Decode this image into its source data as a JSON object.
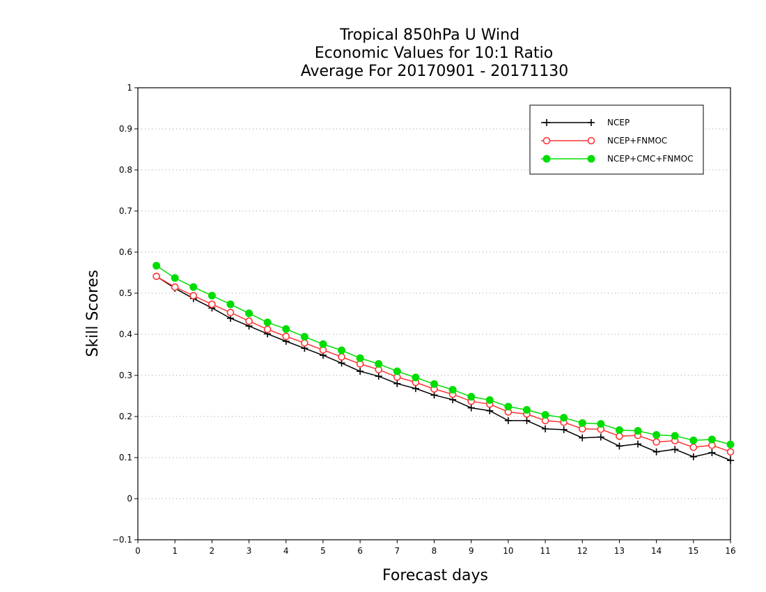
{
  "chart_data": {
    "type": "line",
    "title_lines": [
      "Tropical 850hPa U Wind",
      "Economic Values for 10:1 Ratio",
      "Average For 20170901 - 20171130"
    ],
    "xlabel": "Forecast days",
    "ylabel": "Skill Scores",
    "xlim": [
      0,
      16
    ],
    "ylim": [
      -0.1,
      1
    ],
    "xticks": [
      0,
      1,
      2,
      3,
      4,
      5,
      6,
      7,
      8,
      9,
      10,
      11,
      12,
      13,
      14,
      15,
      16
    ],
    "xtick_labels": [
      "0",
      "1",
      "2",
      "3",
      "4",
      "5",
      "6",
      "7",
      "8",
      "9",
      "10",
      "11",
      "12",
      "13",
      "14",
      "15",
      "16"
    ],
    "yticks": [
      -0.1,
      0,
      0.1,
      0.2,
      0.3,
      0.4,
      0.5,
      0.6,
      0.7,
      0.8,
      0.9,
      1
    ],
    "ytick_labels": [
      "−0.1",
      "0",
      "0.1",
      "0.2",
      "0.3",
      "0.4",
      "0.5",
      "0.6",
      "0.7",
      "0.8",
      "0.9",
      "1"
    ],
    "grid": "horizontal dotted",
    "legend_position": "top-right",
    "x": [
      0.5,
      1,
      1.5,
      2,
      2.5,
      3,
      3.5,
      4,
      4.5,
      5,
      5.5,
      6,
      6.5,
      7,
      7.5,
      8,
      8.5,
      9,
      9.5,
      10,
      10.5,
      11,
      11.5,
      12,
      12.5,
      13,
      13.5,
      14,
      14.5,
      15,
      15.5,
      16
    ],
    "series": [
      {
        "name": "NCEP",
        "color": "#000000",
        "marker": "plus",
        "values": [
          0.541,
          0.512,
          0.487,
          0.464,
          0.439,
          0.42,
          0.401,
          0.383,
          0.366,
          0.349,
          0.33,
          0.31,
          0.298,
          0.28,
          0.268,
          0.252,
          0.241,
          0.221,
          0.214,
          0.19,
          0.19,
          0.17,
          0.168,
          0.148,
          0.15,
          0.128,
          0.133,
          0.114,
          0.12,
          0.102,
          0.112,
          0.093
        ]
      },
      {
        "name": "NCEP+FNMOC",
        "color": "#ff3333",
        "marker": "open-circle",
        "values": [
          0.541,
          0.515,
          0.494,
          0.473,
          0.453,
          0.432,
          0.412,
          0.395,
          0.379,
          0.362,
          0.345,
          0.328,
          0.314,
          0.296,
          0.283,
          0.267,
          0.254,
          0.237,
          0.23,
          0.211,
          0.206,
          0.19,
          0.186,
          0.17,
          0.169,
          0.152,
          0.154,
          0.138,
          0.141,
          0.125,
          0.13,
          0.114
        ]
      },
      {
        "name": "NCEP+CMC+FNMOC",
        "color": "#00dd00",
        "marker": "filled-circle",
        "values": [
          0.567,
          0.537,
          0.515,
          0.494,
          0.473,
          0.451,
          0.429,
          0.413,
          0.394,
          0.376,
          0.361,
          0.342,
          0.328,
          0.31,
          0.295,
          0.279,
          0.265,
          0.248,
          0.24,
          0.224,
          0.216,
          0.204,
          0.197,
          0.184,
          0.182,
          0.167,
          0.165,
          0.155,
          0.153,
          0.142,
          0.144,
          0.132
        ]
      }
    ]
  }
}
